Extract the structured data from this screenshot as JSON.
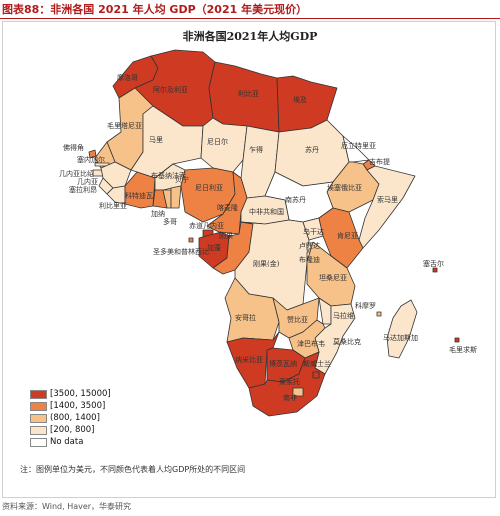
{
  "figure": {
    "title": "图表88：非洲各国 2021 年人均 GDP（2021 年美元现价）",
    "map_title": "非洲各国2021年人均GDP",
    "note": "注：图例单位为美元，不同颜色代表着人均GDP所处的不同区间",
    "source": "资料来源：Wind, Haver，华泰研究"
  },
  "colors": {
    "tier1": "#cf3a22",
    "tier2": "#ee8244",
    "tier3": "#f6c28a",
    "tier4": "#fbe6cc",
    "nodata": "#ffffff",
    "border": "#333333",
    "accent": "#b31b1b"
  },
  "legend": [
    {
      "label": "[3500, 15000]",
      "color": "#cf3a22"
    },
    {
      "label": "[1400, 3500]",
      "color": "#ee8244"
    },
    {
      "label": "(800, 1400]",
      "color": "#f6c28a"
    },
    {
      "label": "[200, 800]",
      "color": "#fbe6cc"
    },
    {
      "label": "No data",
      "color": "#ffffff"
    }
  ],
  "countries": {
    "morocco": {
      "name": "摩洛哥",
      "tier": "tier1"
    },
    "algeria": {
      "name": "阿尔及利亚",
      "tier": "tier1"
    },
    "libya": {
      "name": "利比亚",
      "tier": "tier1"
    },
    "egypt": {
      "name": "埃及",
      "tier": "tier1"
    },
    "mauritania": {
      "name": "毛里塔尼亚",
      "tier": "tier3"
    },
    "mali": {
      "name": "马里",
      "tier": "tier4"
    },
    "niger": {
      "name": "尼日尔",
      "tier": "tier4"
    },
    "chad": {
      "name": "乍得",
      "tier": "tier4"
    },
    "sudan": {
      "name": "苏丹",
      "tier": "tier4"
    },
    "south_sudan": {
      "name": "南苏丹",
      "tier": "nodata"
    },
    "ethiopia": {
      "name": "埃塞俄比亚",
      "tier": "tier3"
    },
    "somalia": {
      "name": "索马里",
      "tier": "tier4"
    },
    "djibouti": {
      "name": "吉布提",
      "tier": "tier2"
    },
    "eritrea": {
      "name": "厄立特里亚",
      "tier": "nodata"
    },
    "cape_verde": {
      "name": "佛得角",
      "tier": "tier2"
    },
    "senegal": {
      "name": "塞内加尔",
      "tier": "tier3"
    },
    "gambia": {
      "name": "冈比亚",
      "tier": "tier4"
    },
    "guinea_bissau": {
      "name": "几内亚比绍",
      "tier": "tier4"
    },
    "guinea": {
      "name": "几内亚",
      "tier": "tier4"
    },
    "sierra_leone": {
      "name": "塞拉利昂",
      "tier": "tier4"
    },
    "liberia": {
      "name": "利比里亚",
      "tier": "tier4"
    },
    "cote_divoire": {
      "name": "科特迪瓦",
      "tier": "tier2"
    },
    "burkina_faso": {
      "name": "布基纳法索",
      "tier": "tier4"
    },
    "ghana": {
      "name": "加纳",
      "tier": "tier2"
    },
    "togo": {
      "name": "多哥",
      "tier": "tier3"
    },
    "benin": {
      "name": "贝宁",
      "tier": "tier3"
    },
    "nigeria": {
      "name": "尼日利亚",
      "tier": "tier2"
    },
    "cameroon": {
      "name": "喀麦隆",
      "tier": "tier2"
    },
    "car": {
      "name": "中非共和国",
      "tier": "tier4"
    },
    "eq_guinea": {
      "name": "赤道几内亚",
      "tier": "tier1"
    },
    "sao_tome": {
      "name": "圣多美和普林西比",
      "tier": "tier2"
    },
    "gabon": {
      "name": "加蓬",
      "tier": "tier1"
    },
    "congo": {
      "name": "刚果",
      "tier": "tier2"
    },
    "drc": {
      "name": "刚果(金)",
      "tier": "tier4"
    },
    "uganda": {
      "name": "乌干达",
      "tier": "tier4"
    },
    "kenya": {
      "name": "肯尼亚",
      "tier": "tier2"
    },
    "rwanda": {
      "name": "卢旺达",
      "tier": "tier4"
    },
    "burundi": {
      "name": "布隆迪",
      "tier": "tier4"
    },
    "tanzania": {
      "name": "坦桑尼亚",
      "tier": "tier3"
    },
    "angola": {
      "name": "安哥拉",
      "tier": "tier3"
    },
    "zambia": {
      "name": "赞比亚",
      "tier": "tier3"
    },
    "malawi": {
      "name": "马拉维",
      "tier": "tier4"
    },
    "mozambique": {
      "name": "莫桑比克",
      "tier": "tier4"
    },
    "zimbabwe": {
      "name": "津巴布韦",
      "tier": "tier3"
    },
    "namibia": {
      "name": "纳米比亚",
      "tier": "tier1"
    },
    "botswana": {
      "name": "博茨瓦纳",
      "tier": "tier1"
    },
    "south_africa": {
      "name": "南非",
      "tier": "tier1"
    },
    "lesotho": {
      "name": "莱索托",
      "tier": "tier3"
    },
    "eswatini": {
      "name": "斯威士兰",
      "tier": "tier1"
    },
    "madagascar": {
      "name": "马达加斯加",
      "tier": "tier4"
    },
    "comoros": {
      "name": "科摩罗",
      "tier": "tier3"
    },
    "seychelles": {
      "name": "塞舌尔",
      "tier": "tier1"
    },
    "mauritius": {
      "name": "毛里求斯",
      "tier": "tier1"
    }
  }
}
